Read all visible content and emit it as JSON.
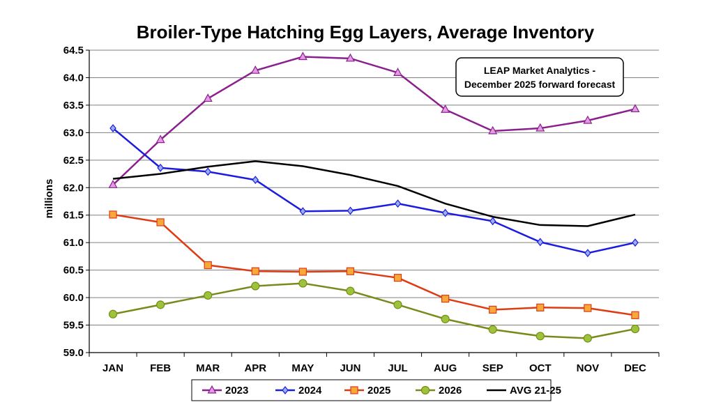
{
  "chart_data": {
    "type": "line",
    "title": "Broiler-Type Hatching Egg Layers, Average Inventory",
    "xlabel": "",
    "ylabel": "millions",
    "categories": [
      "JAN",
      "FEB",
      "MAR",
      "APR",
      "MAY",
      "JUN",
      "JUL",
      "AUG",
      "SEP",
      "OCT",
      "NOV",
      "DEC"
    ],
    "ylim": [
      59.0,
      64.5
    ],
    "yticks": [
      "59.0",
      "59.5",
      "60.0",
      "60.5",
      "61.0",
      "61.5",
      "62.0",
      "62.5",
      "63.0",
      "63.5",
      "64.0",
      "64.5"
    ],
    "grid": true,
    "annotation": [
      "LEAP Market Analytics -",
      "December 2025 forward forecast"
    ],
    "series": [
      {
        "name": "2023",
        "color": "#8B1F8E",
        "marker": "triangle",
        "markerFill": "#E39BE3",
        "values": [
          62.05,
          62.87,
          63.62,
          64.13,
          64.38,
          64.35,
          64.09,
          63.42,
          63.03,
          63.08,
          63.22,
          63.43
        ]
      },
      {
        "name": "2024",
        "color": "#1C1CE0",
        "marker": "diamond",
        "markerFill": "#9AAEF0",
        "values": [
          63.08,
          62.36,
          62.29,
          62.14,
          61.57,
          61.58,
          61.71,
          61.54,
          61.39,
          61.01,
          60.81,
          61.0
        ]
      },
      {
        "name": "2025",
        "color": "#E03A12",
        "marker": "square",
        "markerFill": "#F7A83A",
        "values": [
          61.51,
          61.37,
          60.59,
          60.48,
          60.47,
          60.48,
          60.36,
          59.98,
          59.78,
          59.82,
          59.81,
          59.68
        ]
      },
      {
        "name": "2026",
        "color": "#7A8A1A",
        "marker": "circle",
        "markerFill": "#9CC43A",
        "values": [
          59.7,
          59.87,
          60.04,
          60.21,
          60.26,
          60.12,
          59.87,
          59.61,
          59.42,
          59.3,
          59.26,
          59.43
        ]
      },
      {
        "name": "AVG 21-25",
        "color": "#000000",
        "marker": "none",
        "markerFill": "",
        "values": [
          62.16,
          62.25,
          62.38,
          62.48,
          62.39,
          62.23,
          62.03,
          61.71,
          61.47,
          61.32,
          61.3,
          61.51
        ]
      }
    ]
  }
}
